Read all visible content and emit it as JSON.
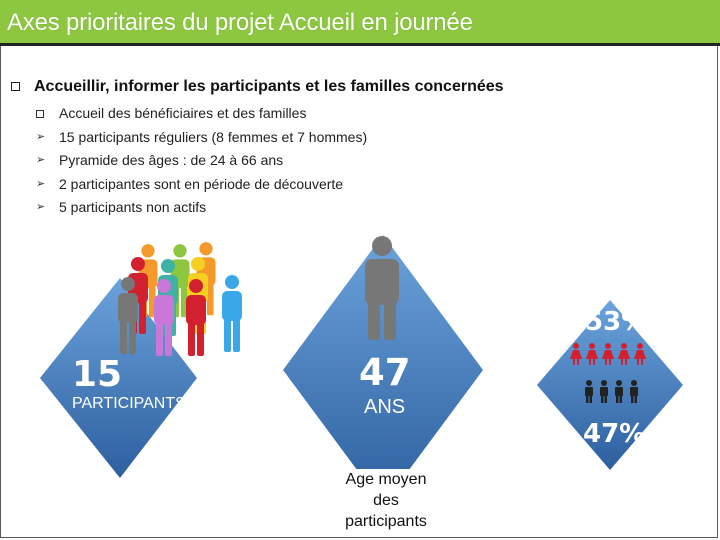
{
  "title": "Axes prioritaires du projet Accueil en journée",
  "main_bullet": "Accueillir, informer les participants et les familles concernées",
  "sub_items": [
    "Accueil des bénéficiaires et des familles",
    "15 participants réguliers (8 femmes et 7 hommes)",
    "Pyramide des âges : de 24 à  66 ans",
    "2 participantes sont en période de découverte",
    "5 participants non actifs"
  ],
  "stats": {
    "participants_number": "15",
    "participants_label": "PARTICIPANTS",
    "age_number": "47",
    "age_unit": "ANS",
    "women_percent": "53%",
    "men_percent": "47%",
    "age_caption": "Age moyen des participants"
  },
  "colors": {
    "title_bar": "#8dc63f",
    "diamond_light": "#6ba3dc",
    "diamond_dark": "#2d5f9e",
    "women": "#d3202f",
    "men": "#222222"
  }
}
